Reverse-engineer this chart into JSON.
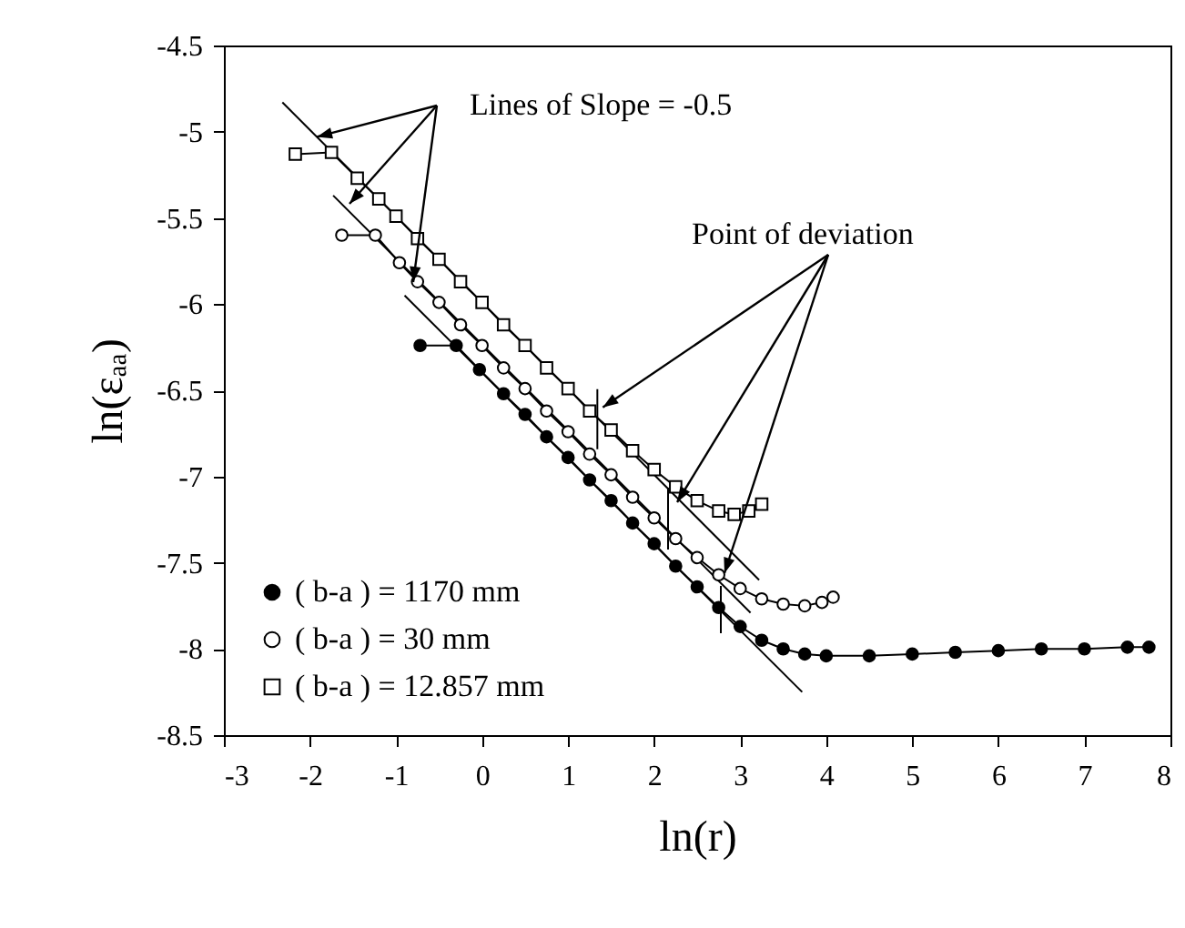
{
  "chart_data": {
    "type": "line",
    "xlabel": "ln(r)",
    "ylabel": "ln(εₐₐ)",
    "xlim": [
      -3,
      8
    ],
    "ylim": [
      -8.5,
      -4.5
    ],
    "xticks": [
      -3,
      -2,
      -1,
      0,
      1,
      2,
      3,
      4,
      5,
      6,
      7,
      8
    ],
    "yticks": [
      -8.5,
      -8,
      -7.5,
      -7,
      -6.5,
      -6,
      -5.5,
      -5,
      -4.5
    ],
    "grid": false,
    "legend": "bottom left",
    "line_style": "solid",
    "annotations": [
      {
        "text": "Lines of Slope = -0.5",
        "x": -1.92,
        "y": -5.03
      },
      {
        "text": "Point of deviation",
        "x": 1.34,
        "y": -6.62
      }
    ],
    "series": [
      {
        "name": "( b-a ) = 1170 mm",
        "color": "#000000",
        "marker": "circle",
        "x": [
          -0.72,
          -0.3,
          -0.03,
          0.25,
          0.5,
          0.75,
          1,
          1.25,
          1.5,
          1.75,
          2,
          2.25,
          2.5,
          2.75,
          3,
          3.25,
          3.5,
          3.75,
          4,
          4.5,
          5,
          5.5,
          6,
          6.5,
          7,
          7.5,
          7.75
        ],
        "values": [
          -6.24,
          -6.24,
          -6.38,
          -6.52,
          -6.64,
          -6.77,
          -6.89,
          -7.02,
          -7.14,
          -7.27,
          -7.39,
          -7.52,
          -7.64,
          -7.76,
          -7.87,
          -7.95,
          -8,
          -8.03,
          -8.04,
          -8.04,
          -8.03,
          -8.02,
          -8.01,
          -8,
          -8,
          -7.99,
          -7.99
        ]
      },
      {
        "name": "( b-a ) = 30 mm",
        "color": "#ffffff",
        "marker": "circle",
        "x": [
          -1.63,
          -1.24,
          -0.96,
          -0.75,
          -0.5,
          -0.25,
          0,
          0.25,
          0.5,
          0.75,
          1,
          1.25,
          1.5,
          1.75,
          2,
          2.25,
          2.5,
          2.75,
          3,
          3.25,
          3.5,
          3.75,
          3.95,
          4.08
        ],
        "values": [
          -5.6,
          -5.6,
          -5.76,
          -5.87,
          -5.99,
          -6.12,
          -6.24,
          -6.37,
          -6.49,
          -6.62,
          -6.74,
          -6.87,
          -6.99,
          -7.12,
          -7.24,
          -7.36,
          -7.47,
          -7.57,
          -7.65,
          -7.71,
          -7.74,
          -7.75,
          -7.73,
          -7.7
        ]
      },
      {
        "name": "( b-a ) = 12.857 mm",
        "color": "#ffffff",
        "marker": "square",
        "x": [
          -2.17,
          -1.75,
          -1.45,
          -1.2,
          -1,
          -0.75,
          -0.5,
          -0.25,
          0,
          0.25,
          0.5,
          0.75,
          1,
          1.25,
          1.5,
          1.75,
          2,
          2.25,
          2.5,
          2.75,
          2.93,
          3.1,
          3.25
        ],
        "values": [
          -5.13,
          -5.12,
          -5.27,
          -5.39,
          -5.49,
          -5.62,
          -5.74,
          -5.87,
          -5.99,
          -6.12,
          -6.24,
          -6.37,
          -6.49,
          -6.62,
          -6.73,
          -6.85,
          -6.96,
          -7.06,
          -7.14,
          -7.2,
          -7.22,
          -7.2,
          -7.16
        ]
      },
      {
        "type": "line",
        "color": "#000000",
        "marker": "none",
        "x": [
          -0.9,
          3.72
        ],
        "values": [
          -5.95,
          -8.25
        ]
      },
      {
        "type": "line",
        "color": "#000000",
        "marker": "none",
        "x": [
          -1.73,
          3.12
        ],
        "values": [
          -5.37,
          -7.79
        ]
      },
      {
        "type": "line",
        "color": "#000000",
        "marker": "none",
        "x": [
          -2.32,
          3.22
        ],
        "values": [
          -4.83,
          -7.6
        ]
      }
    ]
  }
}
